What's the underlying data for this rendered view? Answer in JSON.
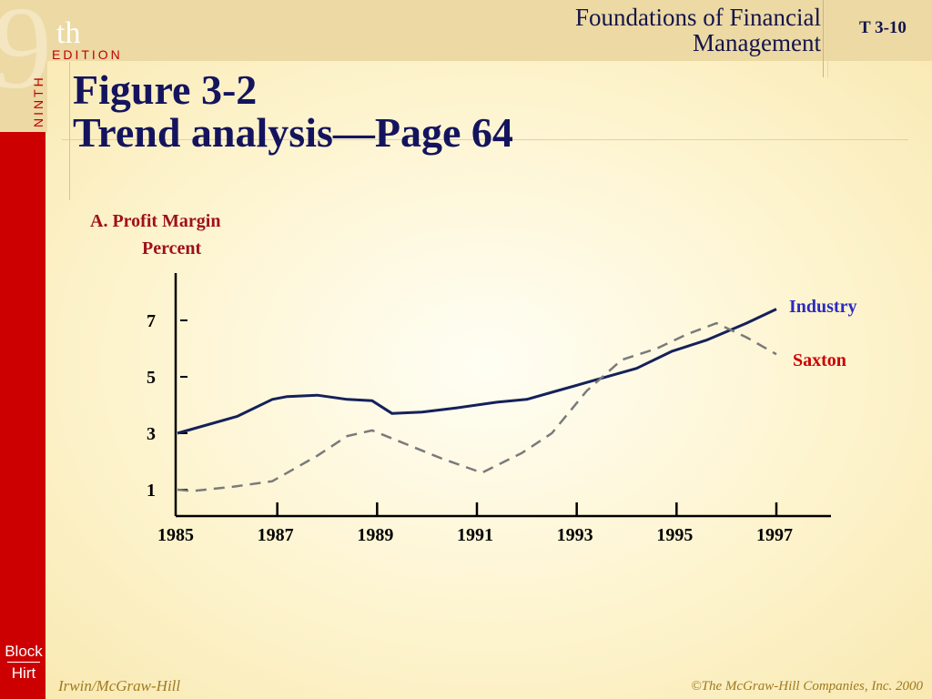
{
  "header": {
    "book_title_line1": "Foundations of Financial",
    "book_title_line2": "Management",
    "slide_id": "T 3-10",
    "edition_number": "9",
    "edition_suffix": "th",
    "edition_word": "EDITION",
    "ninth_word": "NINTH"
  },
  "title": {
    "line1": "Figure 3-2",
    "line2": "Trend analysis—Page 64"
  },
  "chart_data": {
    "type": "line",
    "title": "A.  Profit Margin",
    "ylabel": "Percent",
    "xlabel": "",
    "xlim": [
      1985,
      1998
    ],
    "ylim": [
      0.5,
      8
    ],
    "x_ticks": [
      1985,
      1987,
      1989,
      1991,
      1993,
      1995,
      1997
    ],
    "y_ticks": [
      1,
      3,
      5,
      7
    ],
    "grid": false,
    "legend": "right",
    "series": [
      {
        "name": "Industry",
        "color": "#14215a",
        "style": "solid",
        "label_color": "#2b2bbf",
        "x": [
          1985,
          1986.2,
          1986.9,
          1987.2,
          1987.8,
          1988.4,
          1988.9,
          1989.3,
          1989.9,
          1990.6,
          1991.4,
          1992,
          1992.6,
          1993.4,
          1994.2,
          1994.9,
          1995.6,
          1996.4,
          1997
        ],
        "y": [
          3.0,
          3.6,
          4.2,
          4.3,
          4.35,
          4.2,
          4.15,
          3.7,
          3.75,
          3.9,
          4.1,
          4.2,
          4.5,
          4.9,
          5.3,
          5.9,
          6.3,
          6.9,
          7.4
        ]
      },
      {
        "name": "Saxton",
        "color": "#7a7a7a",
        "style": "dashed",
        "label_color": "#cc0000",
        "x": [
          1985,
          1985.3,
          1986.1,
          1986.9,
          1987.3,
          1987.8,
          1988.4,
          1988.9,
          1989.6,
          1990.3,
          1991.1,
          1991.9,
          1992.5,
          1993.2,
          1993.9,
          1994.6,
          1995.2,
          1995.8,
          1996.4,
          1997
        ],
        "y": [
          1.0,
          0.95,
          1.1,
          1.3,
          1.7,
          2.2,
          2.9,
          3.1,
          2.6,
          2.1,
          1.6,
          2.3,
          3.0,
          4.5,
          5.6,
          6.0,
          6.5,
          6.9,
          6.4,
          5.8
        ]
      }
    ]
  },
  "logo": {
    "line1": "Block",
    "line2": "Hirt"
  },
  "footer": {
    "left": "Irwin/McGraw-Hill",
    "right": "©The McGraw-Hill Companies, Inc. 2000"
  }
}
